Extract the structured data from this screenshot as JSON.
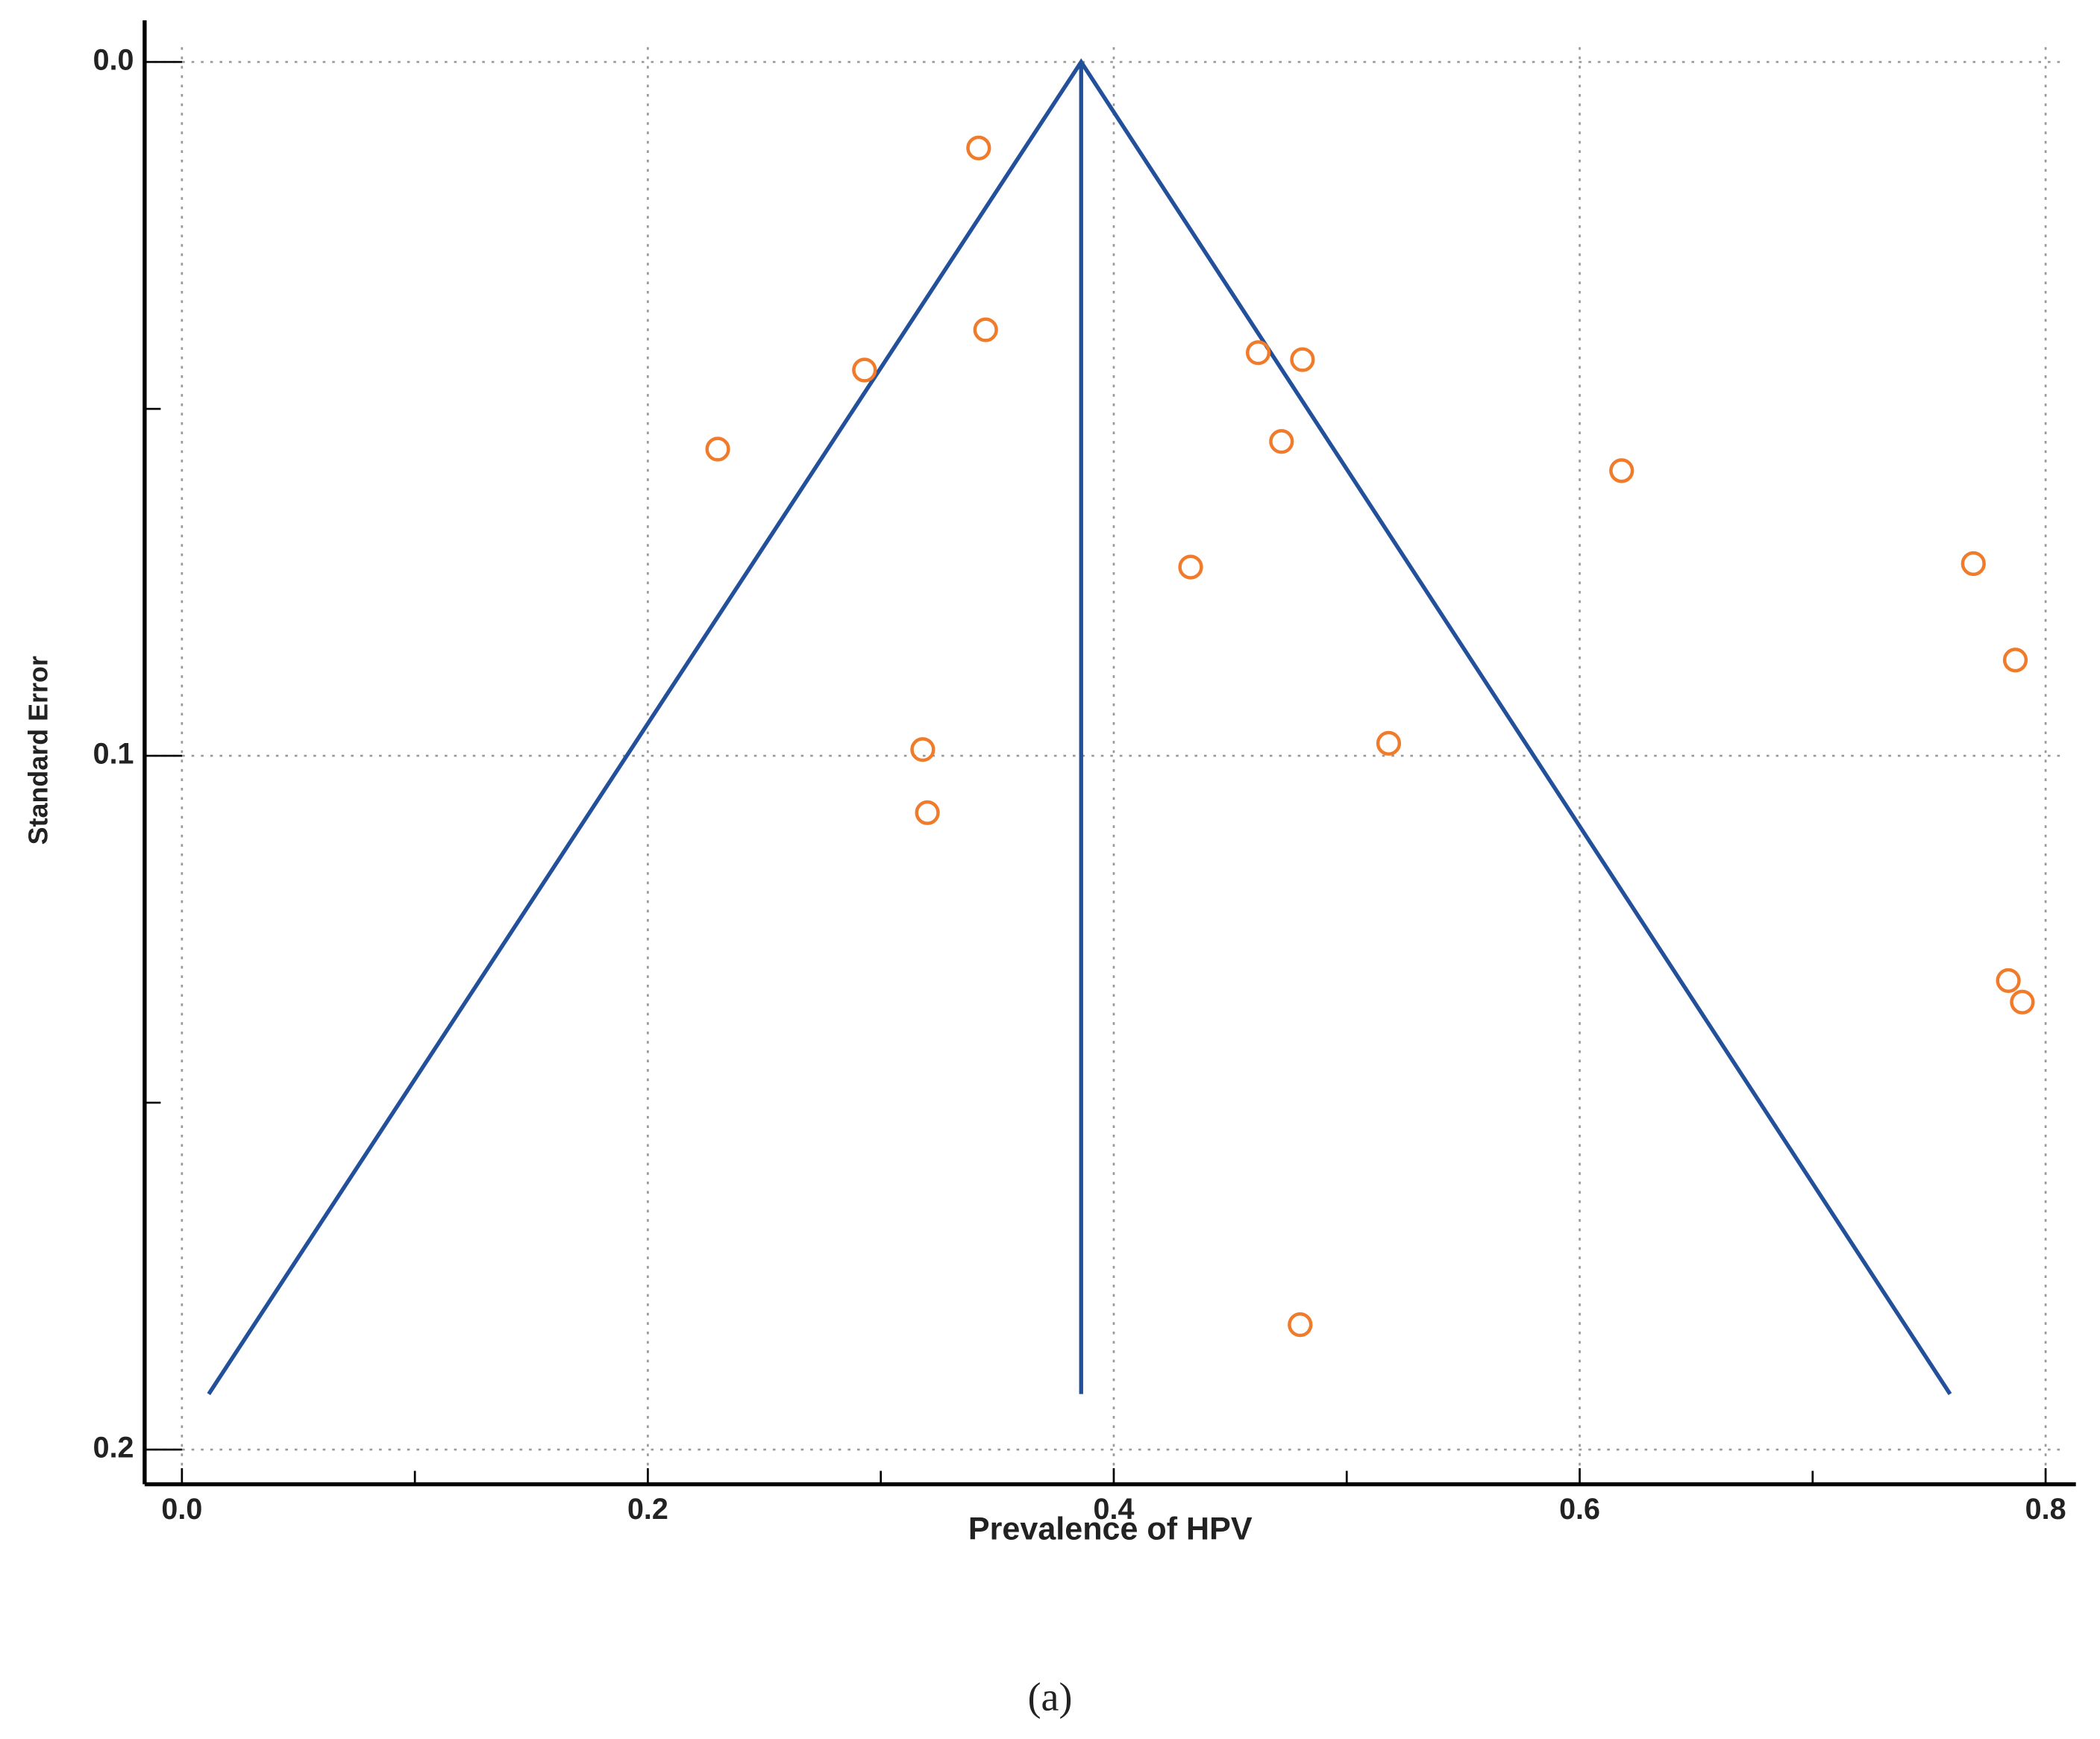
{
  "chart_data": {
    "type": "scatter",
    "xlabel": "Prevalence of HPV",
    "ylabel": "Standard Error",
    "xlim": [
      -0.016,
      0.813
    ],
    "ylim": [
      -0.006,
      0.205
    ],
    "y_inverted": true,
    "xticks": [
      {
        "value": 0,
        "label": "0.0"
      },
      0.2,
      0.4,
      0.6,
      0.8
    ],
    "yticks": [
      {
        "value": 0,
        "label": "0.0"
      },
      0.1,
      0.2
    ],
    "xminorticks": [
      0.1,
      0.3,
      0.5,
      0.7
    ],
    "yminorticks": [
      0.05,
      0.15
    ],
    "grid": true,
    "points": {
      "color": "#f07b2a",
      "x": [
        0.342,
        0.345,
        0.293,
        0.23,
        0.462,
        0.481,
        0.472,
        0.618,
        0.433,
        0.769,
        0.787,
        0.518,
        0.318,
        0.32,
        0.784,
        0.79,
        0.48
      ],
      "y": [
        0.0124,
        0.0386,
        0.0444,
        0.0558,
        0.0419,
        0.0429,
        0.0547,
        0.0589,
        0.0728,
        0.0723,
        0.0862,
        0.0982,
        0.0991,
        0.1082,
        0.1324,
        0.1355,
        0.182
      ]
    },
    "funnel": {
      "color": "#23509a",
      "x": [
        0.0115,
        0.386,
        0.759
      ],
      "y": [
        0.192,
        0,
        0.192
      ]
    },
    "center_line": {
      "color": "#23509a",
      "x": [
        0.386,
        0.386
      ],
      "y": [
        0,
        0.192
      ]
    }
  },
  "caption": "(a)"
}
